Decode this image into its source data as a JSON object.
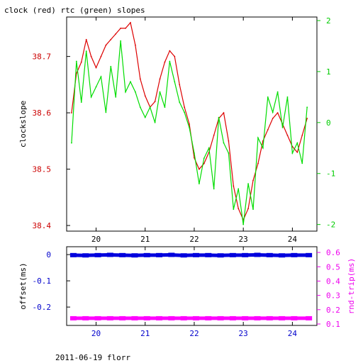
{
  "chart_data": [
    {
      "type": "line",
      "title": "clock (red) rtc (green) slopes",
      "xlabel": "",
      "ylabel": "clockslope",
      "y2label": "",
      "xlim": [
        19.4,
        24.5
      ],
      "ylim": [
        38.39,
        38.77
      ],
      "y2lim": [
        -2.13,
        2.07
      ],
      "xticks": [
        20,
        21,
        22,
        23,
        24
      ],
      "yticks": [
        38.4,
        38.5,
        38.6,
        38.7
      ],
      "y2ticks": [
        -2,
        -1,
        0,
        1,
        2
      ],
      "series": [
        {
          "axis": "left",
          "color": "#dd0000",
          "x": [
            19.5,
            19.6,
            19.7,
            19.8,
            19.9,
            20.0,
            20.1,
            20.2,
            20.3,
            20.4,
            20.5,
            20.6,
            20.7,
            20.8,
            20.9,
            21.0,
            21.1,
            21.2,
            21.3,
            21.4,
            21.5,
            21.6,
            21.7,
            21.8,
            21.9,
            22.0,
            22.1,
            22.2,
            22.3,
            22.4,
            22.5,
            22.6,
            22.7,
            22.8,
            22.9,
            23.0,
            23.1,
            23.2,
            23.3,
            23.4,
            23.5,
            23.6,
            23.7,
            23.8,
            23.9,
            24.0,
            24.1,
            24.2,
            24.3
          ],
          "values": [
            38.6,
            38.67,
            38.69,
            38.73,
            38.7,
            38.68,
            38.7,
            38.72,
            38.73,
            38.74,
            38.75,
            38.75,
            38.76,
            38.72,
            38.66,
            38.63,
            38.61,
            38.62,
            38.66,
            38.69,
            38.71,
            38.7,
            38.65,
            38.61,
            38.58,
            38.52,
            38.5,
            38.51,
            38.53,
            38.56,
            38.59,
            38.6,
            38.55,
            38.47,
            38.43,
            38.41,
            38.43,
            38.48,
            38.51,
            38.55,
            38.57,
            38.59,
            38.6,
            38.58,
            38.56,
            38.54,
            38.53,
            38.56,
            38.59
          ]
        },
        {
          "axis": "right",
          "color": "#00dd00",
          "x": [
            19.5,
            19.6,
            19.7,
            19.8,
            19.9,
            20.0,
            20.1,
            20.2,
            20.3,
            20.4,
            20.5,
            20.6,
            20.7,
            20.8,
            20.9,
            21.0,
            21.1,
            21.2,
            21.3,
            21.4,
            21.5,
            21.6,
            21.7,
            21.8,
            21.9,
            22.0,
            22.1,
            22.2,
            22.3,
            22.4,
            22.5,
            22.6,
            22.7,
            22.8,
            22.9,
            23.0,
            23.1,
            23.2,
            23.3,
            23.4,
            23.5,
            23.6,
            23.7,
            23.8,
            23.9,
            24.0,
            24.1,
            24.2,
            24.3
          ],
          "values": [
            -0.4,
            1.2,
            0.4,
            1.4,
            0.5,
            0.7,
            0.9,
            0.2,
            1.1,
            0.5,
            1.6,
            0.6,
            0.8,
            0.6,
            0.3,
            0.1,
            0.3,
            0.0,
            0.6,
            0.3,
            1.2,
            0.8,
            0.4,
            0.2,
            -0.1,
            -0.6,
            -1.2,
            -0.7,
            -0.5,
            -1.3,
            0.1,
            -0.4,
            -0.6,
            -1.7,
            -1.3,
            -2.0,
            -1.2,
            -1.7,
            -0.3,
            -0.5,
            0.5,
            0.2,
            0.6,
            -0.1,
            0.5,
            -0.6,
            -0.4,
            -0.8,
            0.3
          ]
        }
      ]
    },
    {
      "type": "scatter",
      "title": "",
      "xlabel": "",
      "ylabel": "offset(ms)",
      "y2label": "rnd-trip(ms)",
      "xlim": [
        19.4,
        24.5
      ],
      "ylim": [
        -0.27,
        0.03
      ],
      "y2lim": [
        0.09,
        0.64
      ],
      "xticks": [
        20,
        21,
        22,
        23,
        24
      ],
      "yticks": [
        0,
        -0.1,
        -0.2
      ],
      "y2ticks": [
        0.1,
        0.2,
        0.3,
        0.4,
        0.5,
        0.6
      ],
      "series": [
        {
          "axis": "left",
          "color": "#0000dd",
          "x": [
            19.5,
            19.75,
            20.0,
            20.25,
            20.5,
            20.75,
            21.0,
            21.25,
            21.5,
            21.75,
            22.0,
            22.25,
            22.5,
            22.75,
            23.0,
            23.25,
            23.5,
            23.75,
            24.0,
            24.3
          ],
          "values": [
            -0.002,
            -0.003,
            -0.002,
            -0.001,
            -0.002,
            -0.003,
            -0.002,
            -0.002,
            -0.001,
            -0.003,
            -0.002,
            -0.002,
            -0.003,
            -0.002,
            -0.002,
            -0.001,
            -0.002,
            -0.003,
            -0.002,
            -0.002
          ]
        },
        {
          "axis": "right",
          "color": "#ff00ff",
          "x": [
            19.5,
            19.75,
            20.0,
            20.25,
            20.5,
            20.75,
            21.0,
            21.25,
            21.5,
            21.75,
            22.0,
            22.25,
            22.5,
            22.75,
            23.0,
            23.25,
            23.5,
            23.75,
            24.0,
            24.3
          ],
          "values": [
            0.14,
            0.14,
            0.14,
            0.14,
            0.14,
            0.14,
            0.14,
            0.14,
            0.14,
            0.14,
            0.14,
            0.14,
            0.14,
            0.14,
            0.14,
            0.14,
            0.14,
            0.14,
            0.14,
            0.14
          ]
        }
      ]
    }
  ],
  "footer": "2011-06-19 florr"
}
